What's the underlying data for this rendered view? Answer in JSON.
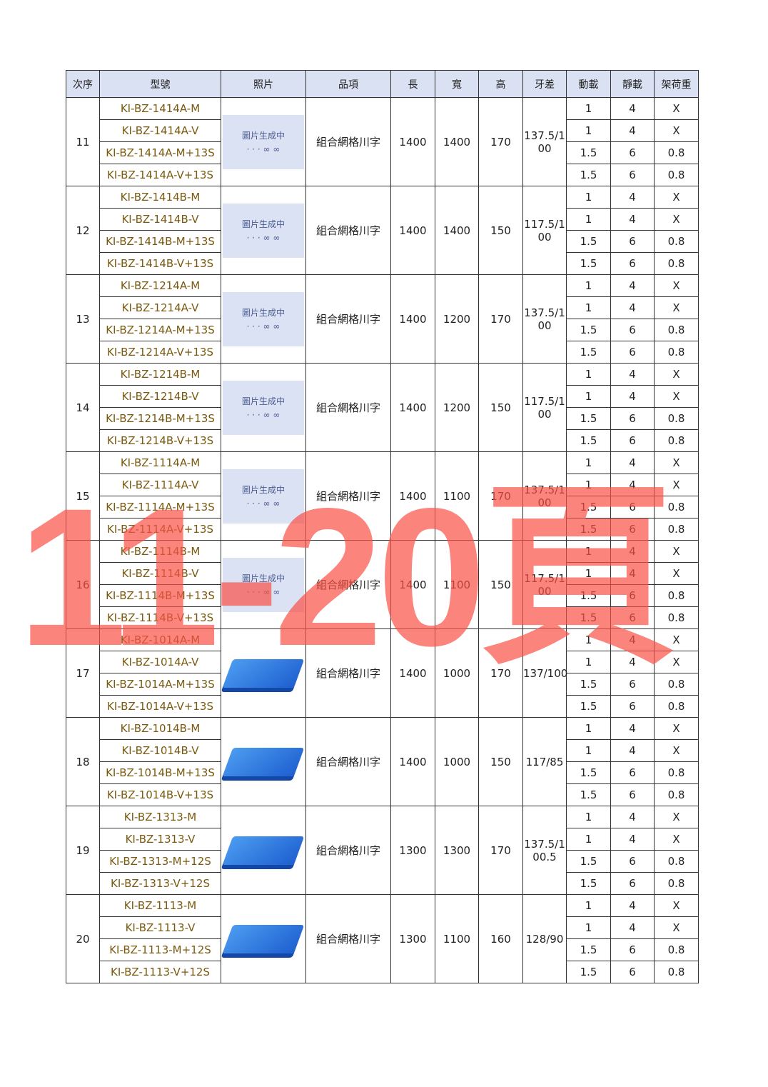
{
  "headers": [
    "次序",
    "型號",
    "照片",
    "品項",
    "長",
    "寬",
    "高",
    "牙差",
    "動載",
    "靜載",
    "架荷重"
  ],
  "placeholder_text": "圖片生成中",
  "watermark": "11-20頁",
  "groups": [
    {
      "no": "11",
      "models": [
        "KI-BZ-1414A-M",
        "KI-BZ-1414A-V",
        "KI-BZ-1414A-M+13S",
        "KI-BZ-1414A-V+13S"
      ],
      "photo": "placeholder",
      "item": "組合網格川字",
      "length": "1400",
      "width": "1400",
      "height": "170",
      "tooth": "137.5/100",
      "dyn": [
        "1",
        "1",
        "1.5",
        "1.5"
      ],
      "stat": [
        "4",
        "4",
        "6",
        "6"
      ],
      "rack": [
        "X",
        "X",
        "0.8",
        "0.8"
      ]
    },
    {
      "no": "12",
      "models": [
        "KI-BZ-1414B-M",
        "KI-BZ-1414B-V",
        "KI-BZ-1414B-M+13S",
        "KI-BZ-1414B-V+13S"
      ],
      "photo": "placeholder",
      "item": "組合網格川字",
      "length": "1400",
      "width": "1400",
      "height": "150",
      "tooth": "117.5/100",
      "dyn": [
        "1",
        "1",
        "1.5",
        "1.5"
      ],
      "stat": [
        "4",
        "4",
        "6",
        "6"
      ],
      "rack": [
        "X",
        "X",
        "0.8",
        "0.8"
      ]
    },
    {
      "no": "13",
      "models": [
        "KI-BZ-1214A-M",
        "KI-BZ-1214A-V",
        "KI-BZ-1214A-M+13S",
        "KI-BZ-1214A-V+13S"
      ],
      "photo": "placeholder",
      "item": "組合網格川字",
      "length": "1400",
      "width": "1200",
      "height": "170",
      "tooth": "137.5/100",
      "dyn": [
        "1",
        "1",
        "1.5",
        "1.5"
      ],
      "stat": [
        "4",
        "4",
        "6",
        "6"
      ],
      "rack": [
        "X",
        "X",
        "0.8",
        "0.8"
      ]
    },
    {
      "no": "14",
      "models": [
        "KI-BZ-1214B-M",
        "KI-BZ-1214B-V",
        "KI-BZ-1214B-M+13S",
        "KI-BZ-1214B-V+13S"
      ],
      "photo": "placeholder",
      "item": "組合網格川字",
      "length": "1400",
      "width": "1200",
      "height": "150",
      "tooth": "117.5/100",
      "dyn": [
        "1",
        "1",
        "1.5",
        "1.5"
      ],
      "stat": [
        "4",
        "4",
        "6",
        "6"
      ],
      "rack": [
        "X",
        "X",
        "0.8",
        "0.8"
      ]
    },
    {
      "no": "15",
      "models": [
        "KI-BZ-1114A-M",
        "KI-BZ-1114A-V",
        "KI-BZ-1114A-M+13S",
        "KI-BZ-1114A-V+13S"
      ],
      "photo": "placeholder",
      "item": "組合網格川字",
      "length": "1400",
      "width": "1100",
      "height": "170",
      "tooth": "137.5/100",
      "dyn": [
        "1",
        "1",
        "1.5",
        "1.5"
      ],
      "stat": [
        "4",
        "4",
        "6",
        "6"
      ],
      "rack": [
        "X",
        "X",
        "0.8",
        "0.8"
      ]
    },
    {
      "no": "16",
      "models": [
        "KI-BZ-1114B-M",
        "KI-BZ-1114B-V",
        "KI-BZ-1114B-M+13S",
        "KI-BZ-1114B-V+13S"
      ],
      "photo": "placeholder",
      "item": "組合網格川字",
      "length": "1400",
      "width": "1100",
      "height": "150",
      "tooth": "117.5/100",
      "dyn": [
        "1",
        "1",
        "1.5",
        "1.5"
      ],
      "stat": [
        "4",
        "4",
        "6",
        "6"
      ],
      "rack": [
        "X",
        "X",
        "0.8",
        "0.8"
      ]
    },
    {
      "no": "17",
      "models": [
        "KI-BZ-1014A-M",
        "KI-BZ-1014A-V",
        "KI-BZ-1014A-M+13S",
        "KI-BZ-1014A-V+13S"
      ],
      "photo": "pallet",
      "item": "組合網格川字",
      "length": "1400",
      "width": "1000",
      "height": "170",
      "tooth": "137/100",
      "dyn": [
        "1",
        "1",
        "1.5",
        "1.5"
      ],
      "stat": [
        "4",
        "4",
        "6",
        "6"
      ],
      "rack": [
        "X",
        "X",
        "0.8",
        "0.8"
      ]
    },
    {
      "no": "18",
      "models": [
        "KI-BZ-1014B-M",
        "KI-BZ-1014B-V",
        "KI-BZ-1014B-M+13S",
        "KI-BZ-1014B-V+13S"
      ],
      "photo": "pallet",
      "item": "組合網格川字",
      "length": "1400",
      "width": "1000",
      "height": "150",
      "tooth": "117/85",
      "dyn": [
        "1",
        "1",
        "1.5",
        "1.5"
      ],
      "stat": [
        "4",
        "4",
        "6",
        "6"
      ],
      "rack": [
        "X",
        "X",
        "0.8",
        "0.8"
      ]
    },
    {
      "no": "19",
      "models": [
        "KI-BZ-1313-M",
        "KI-BZ-1313-V",
        "KI-BZ-1313-M+12S",
        "KI-BZ-1313-V+12S"
      ],
      "photo": "pallet",
      "item": "組合網格川字",
      "length": "1300",
      "width": "1300",
      "height": "170",
      "tooth": "137.5/100.5",
      "dyn": [
        "1",
        "1",
        "1.5",
        "1.5"
      ],
      "stat": [
        "4",
        "4",
        "6",
        "6"
      ],
      "rack": [
        "X",
        "X",
        "0.8",
        "0.8"
      ]
    },
    {
      "no": "20",
      "models": [
        "KI-BZ-1113-M",
        "KI-BZ-1113-V",
        "KI-BZ-1113-M+12S",
        "KI-BZ-1113-V+12S"
      ],
      "photo": "pallet",
      "item": "組合網格川字",
      "length": "1300",
      "width": "1100",
      "height": "160",
      "tooth": "128/90",
      "dyn": [
        "1",
        "1",
        "1.5",
        "1.5"
      ],
      "stat": [
        "4",
        "4",
        "6",
        "6"
      ],
      "rack": [
        "X",
        "X",
        "0.8",
        "0.8"
      ]
    }
  ],
  "colors": {
    "header_bg": "#d9e1f2",
    "model_text": "#7a5a10",
    "watermark": "#fa5046"
  }
}
